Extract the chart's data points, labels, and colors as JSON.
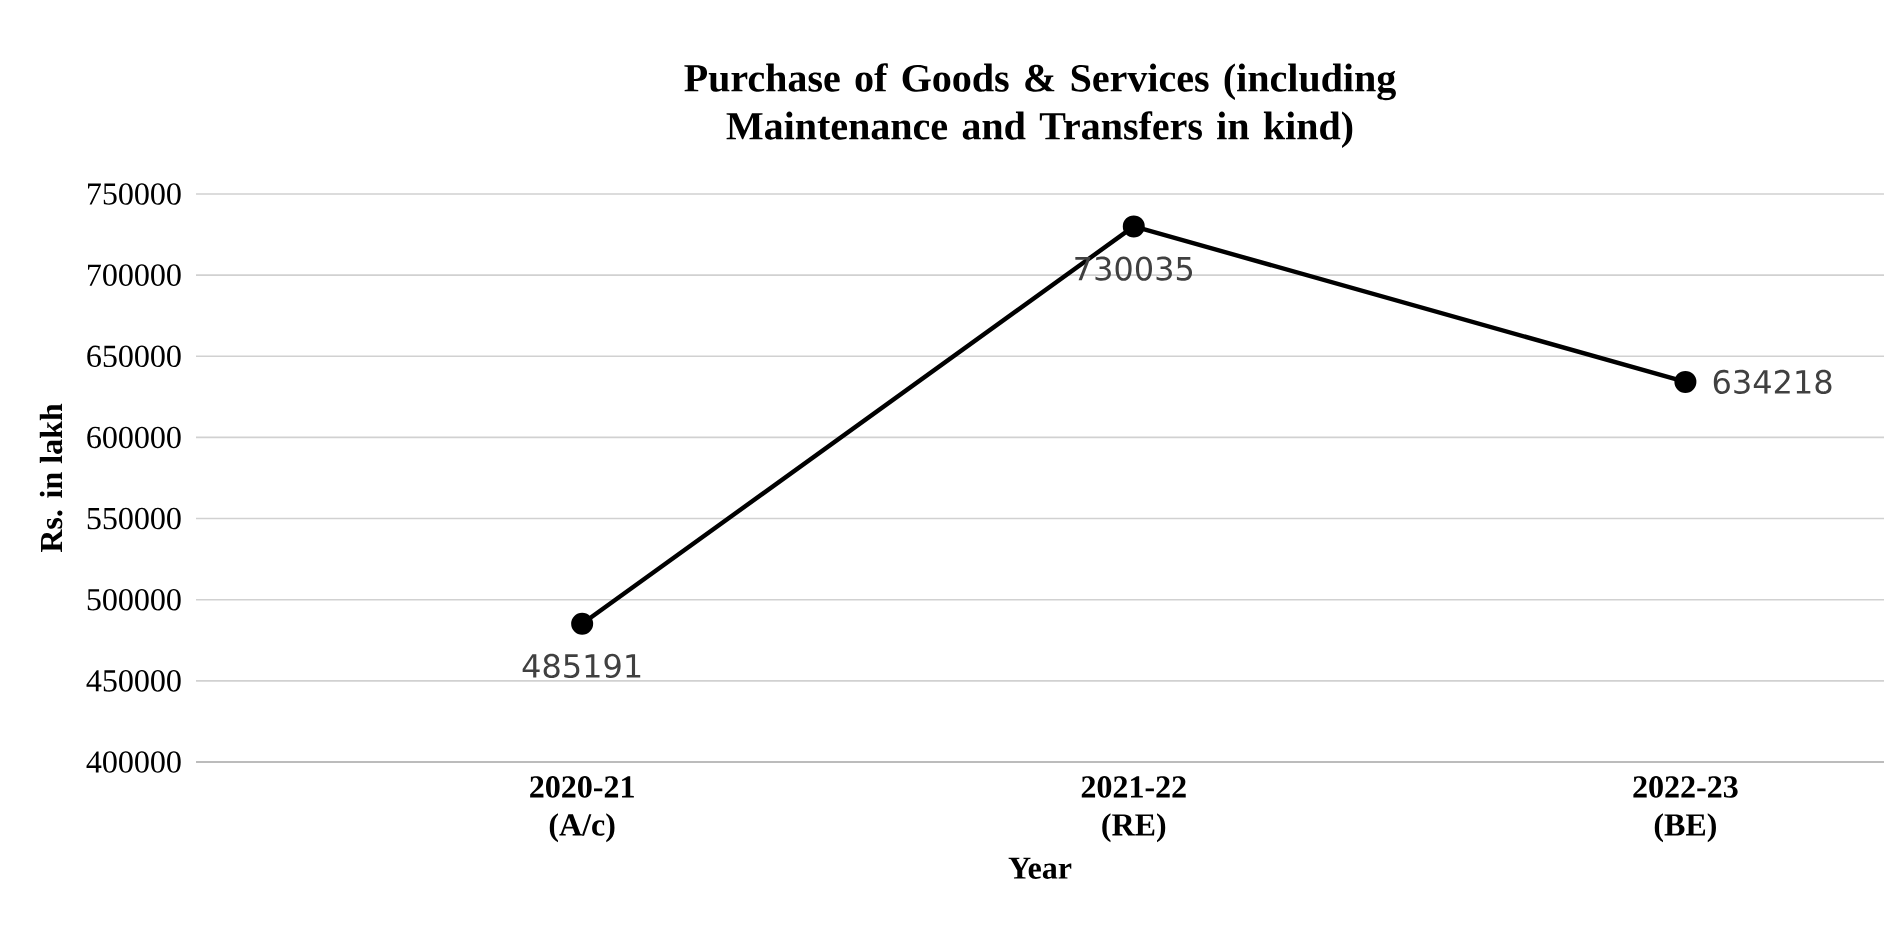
{
  "chart_data": {
    "type": "line",
    "title": "Purchase of Goods & Services (including Maintenance and Transfers in kind)",
    "xlabel": "Year",
    "ylabel": "Rs. in lakh",
    "categories": [
      "2020-21 (A/c)",
      "2021-22 (RE)",
      "2022-23 (BE)"
    ],
    "series": [
      {
        "color": "#000000",
        "values": [
          485191,
          730035,
          634218
        ]
      }
    ],
    "ylim": [
      400000,
      750000
    ],
    "yticks": [
      400000,
      450000,
      500000,
      550000,
      600000,
      650000,
      700000,
      750000
    ],
    "grid": "y",
    "marker": "circle",
    "line_style": "solid",
    "data_labels": true
  }
}
